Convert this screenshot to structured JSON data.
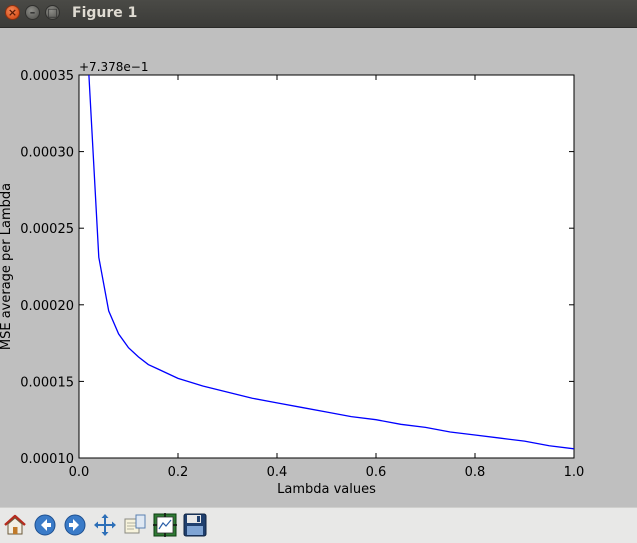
{
  "window": {
    "title": "Figure 1",
    "controls": {
      "close": "×",
      "minimize": "–",
      "maximize": "□"
    }
  },
  "toolbar": {
    "buttons": [
      {
        "icon": "home-icon"
      },
      {
        "icon": "back-arrow-icon"
      },
      {
        "icon": "forward-arrow-icon"
      },
      {
        "icon": "pan-move-icon"
      },
      {
        "icon": "zoom-rectangle-icon"
      },
      {
        "icon": "configure-subplots-icon"
      },
      {
        "icon": "save-floppy-icon"
      }
    ]
  },
  "colors": {
    "line": "#0000ff",
    "figure_bg": "#bfbfbf",
    "axes_bg": "#ffffff"
  },
  "chart_data": {
    "type": "line",
    "title": "",
    "xlabel": "Lambda values",
    "ylabel": "MSE average per Lambda",
    "offset_text": "+7.378e−1",
    "xlim": [
      0.0,
      1.0
    ],
    "ylim": [
      0.0001,
      0.00035
    ],
    "xticks": [
      "0.0",
      "0.2",
      "0.4",
      "0.6",
      "0.8",
      "1.0"
    ],
    "yticks": [
      "0.00010",
      "0.00015",
      "0.00020",
      "0.00025",
      "0.00030",
      "0.00035"
    ],
    "grid": false,
    "series": [
      {
        "x": [
          0.02,
          0.04,
          0.06,
          0.08,
          0.1,
          0.12,
          0.14,
          0.16,
          0.18,
          0.2,
          0.25,
          0.3,
          0.35,
          0.4,
          0.45,
          0.5,
          0.55,
          0.6,
          0.65,
          0.7,
          0.75,
          0.8,
          0.85,
          0.9,
          0.95,
          1.0
        ],
        "y": [
          0.00035,
          0.000231,
          0.000196,
          0.000181,
          0.000172,
          0.000166,
          0.000161,
          0.000158,
          0.000155,
          0.000152,
          0.000147,
          0.000143,
          0.000139,
          0.000136,
          0.000133,
          0.00013,
          0.000127,
          0.000125,
          0.000122,
          0.00012,
          0.000117,
          0.000115,
          0.000113,
          0.000111,
          0.000108,
          0.000106
        ]
      }
    ]
  }
}
